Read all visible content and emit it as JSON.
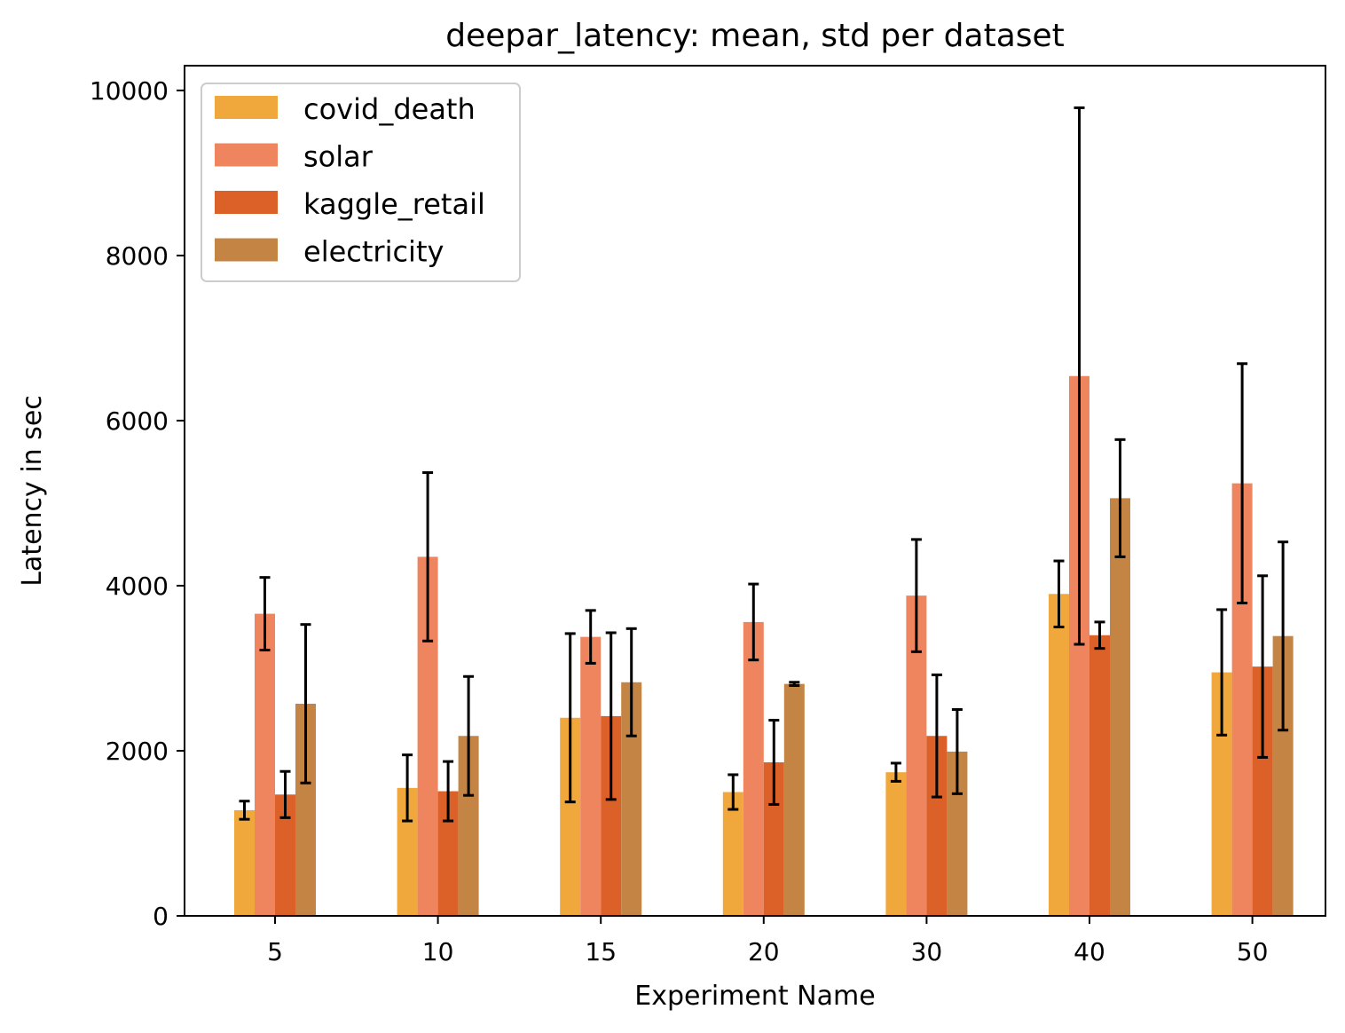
{
  "chart_data": {
    "type": "bar",
    "title": "deepar_latency: mean, std per dataset",
    "xlabel": "Experiment Name",
    "ylabel": "Latency in sec",
    "ylim": [
      0,
      10300
    ],
    "yticks": [
      0,
      2000,
      4000,
      6000,
      8000,
      10000
    ],
    "categories": [
      "5",
      "10",
      "15",
      "20",
      "30",
      "40",
      "50"
    ],
    "legend_position": "top-left",
    "grid": false,
    "series": [
      {
        "name": "covid_death",
        "color": "#f0a83c",
        "values": [
          1280,
          1550,
          2400,
          1500,
          1740,
          3900,
          2950
        ],
        "errors": [
          110,
          400,
          1020,
          210,
          110,
          400,
          760
        ]
      },
      {
        "name": "solar",
        "color": "#ee855e",
        "values": [
          3660,
          4350,
          3380,
          3560,
          3880,
          6540,
          5240
        ],
        "errors": [
          440,
          1020,
          320,
          460,
          680,
          3250,
          1450
        ]
      },
      {
        "name": "kaggle_retail",
        "color": "#dc6128",
        "values": [
          1470,
          1510,
          2420,
          1860,
          2180,
          3400,
          3020
        ],
        "errors": [
          280,
          360,
          1010,
          510,
          740,
          160,
          1100
        ]
      },
      {
        "name": "electricity",
        "color": "#c48443",
        "values": [
          2570,
          2180,
          2830,
          2810,
          1990,
          5060,
          3390
        ],
        "errors": [
          960,
          720,
          650,
          20,
          510,
          710,
          1140
        ]
      }
    ]
  }
}
